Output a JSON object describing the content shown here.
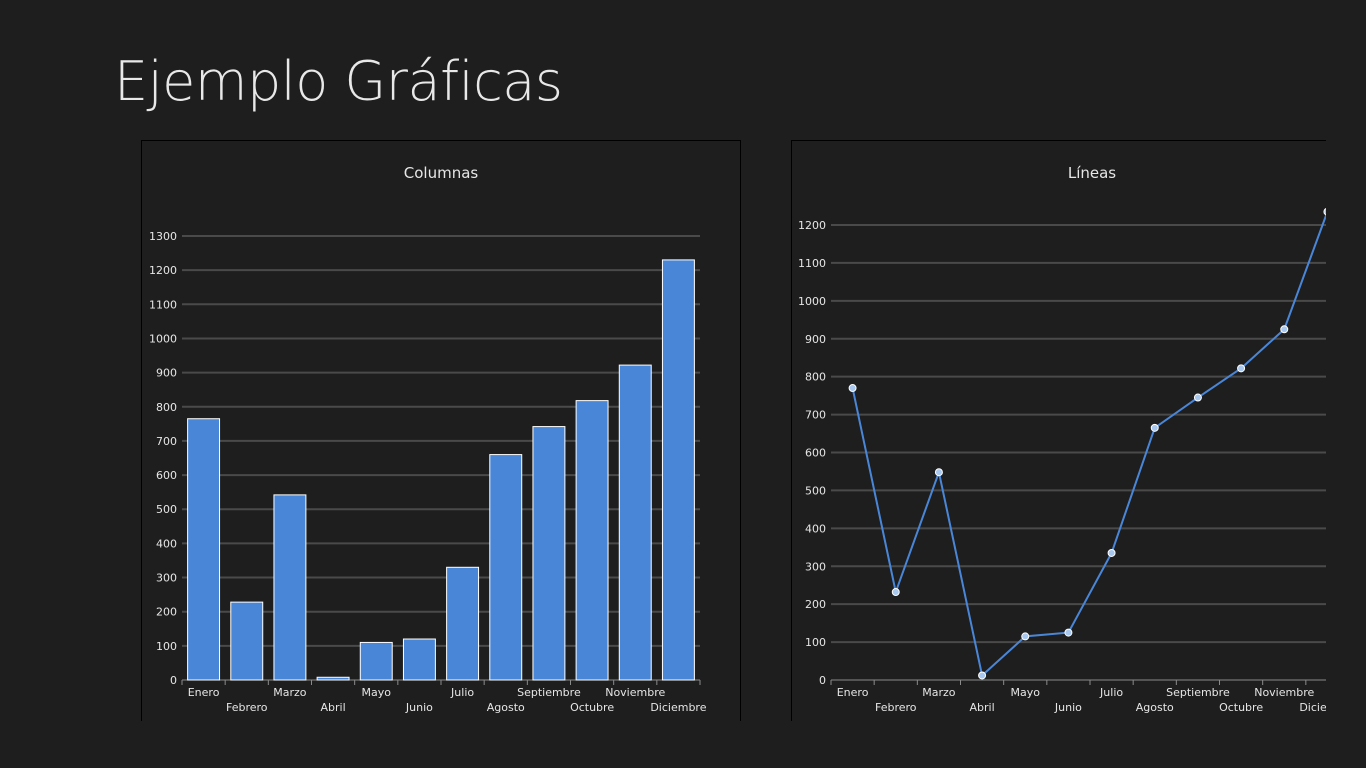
{
  "page": {
    "title": "Ejemplo Gráficas"
  },
  "chart_data": [
    {
      "type": "bar",
      "title": "Columnas",
      "categories": [
        "Enero",
        "Febrero",
        "Marzo",
        "Abril",
        "Mayo",
        "Junio",
        "Julio",
        "Agosto",
        "Septiembre",
        "Octubre",
        "Noviembre",
        "Diciembre"
      ],
      "values": [
        765,
        228,
        542,
        8,
        110,
        120,
        330,
        660,
        742,
        818,
        922,
        1230
      ],
      "ylim": [
        0,
        1300
      ],
      "yticks": [
        0,
        100,
        200,
        300,
        400,
        500,
        600,
        700,
        800,
        900,
        1000,
        1100,
        1200,
        1300
      ],
      "grid": true,
      "colors": {
        "fill": "#4a86d8",
        "stroke": "#ffffff",
        "grid": "#4a4a4a"
      }
    },
    {
      "type": "line",
      "title": "Líneas",
      "categories": [
        "Enero",
        "Febrero",
        "Marzo",
        "Abril",
        "Mayo",
        "Junio",
        "Julio",
        "Agosto",
        "Septiembre",
        "Octubre",
        "Noviembre",
        "Diciembre"
      ],
      "values": [
        770,
        232,
        548,
        12,
        115,
        125,
        335,
        665,
        745,
        822,
        925,
        1235
      ],
      "ylim": [
        0,
        1200
      ],
      "yticks": [
        0,
        100,
        200,
        300,
        400,
        500,
        600,
        700,
        800,
        900,
        1000,
        1100,
        1200
      ],
      "grid": true,
      "colors": {
        "line": "#4a86d8",
        "marker_fill": "#a8c8f0",
        "marker_stroke": "#ffffff",
        "grid": "#4a4a4a"
      }
    }
  ]
}
